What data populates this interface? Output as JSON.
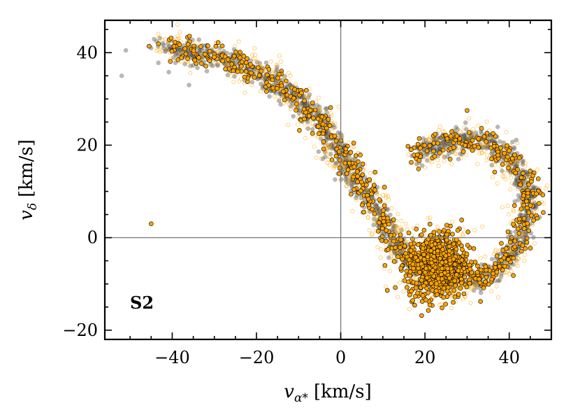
{
  "chart_data": {
    "type": "scatter",
    "title": "",
    "panel_label": "S2",
    "xlabel": "v_α* [km/s]",
    "ylabel": "v_δ [km/s]",
    "xlabel_main": "v",
    "xlabel_sub": "α*",
    "xlabel_units": "[km/s]",
    "ylabel_main": "v",
    "ylabel_sub": "δ",
    "ylabel_units": "[km/s]",
    "xlim": [
      -56,
      50
    ],
    "ylim": [
      -22,
      47
    ],
    "xticks": [
      -40,
      -20,
      0,
      20,
      40
    ],
    "yticks": [
      -20,
      0,
      20,
      40
    ],
    "xtick_labels": [
      "−40",
      "−20",
      "0",
      "20",
      "40"
    ],
    "ytick_labels": [
      "−20",
      "0",
      "20",
      "40"
    ],
    "reference_lines": {
      "x": 0,
      "y": 0
    },
    "colors": {
      "filled": "#ffa500",
      "filled_edge": "#000000",
      "hollow": "#ffa500",
      "background": "#555555",
      "axis_line": "#808080"
    },
    "series": [
      {
        "name": "background (grey)",
        "style": "grey-dot",
        "structure": "S-shaped stream tracing the same path as the orange points",
        "notable_points": [
          [
            -51,
            40.5
          ],
          [
            -52,
            35
          ],
          [
            -36,
            33
          ],
          [
            -45,
            41
          ]
        ]
      },
      {
        "name": "hollow (orange outline)",
        "style": "hollow",
        "structure": "scattered around the stream path"
      },
      {
        "name": "selected (orange filled)",
        "style": "filled",
        "structure": "arm from (-42, 41) down to (0, 20), then to a dense clump near (22, -5), sweeping up through (45, 5) to (30, 22)",
        "notable_points": [
          [
            -45,
            3
          ],
          [
            10.5,
            -6
          ],
          [
            30,
            27.5
          ]
        ]
      }
    ]
  }
}
